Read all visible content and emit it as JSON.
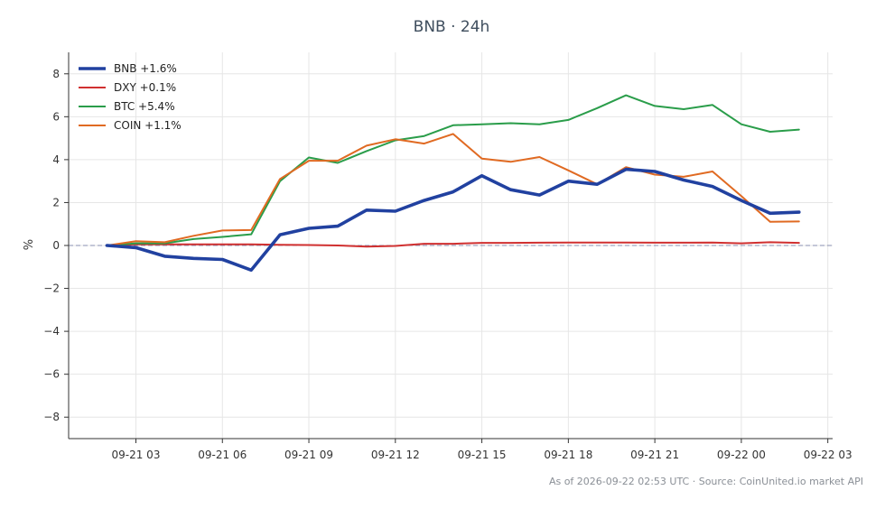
{
  "title": "BNB · 24h",
  "footer": "As of 2026-09-22 02:53 UTC · Source: CoinUnited.io market API",
  "chart_data": {
    "type": "line",
    "title": "BNB · 24h",
    "xlabel": "",
    "ylabel": "%",
    "ylim": [
      -9,
      9
    ],
    "xlim": [
      "2026-09-21 00:40",
      "2026-09-22 03:10"
    ],
    "yticks": [
      -8,
      -6,
      -4,
      -2,
      0,
      2,
      4,
      6,
      8
    ],
    "ytick_labels": [
      "−8",
      "−6",
      "−4",
      "−2",
      "0",
      "2",
      "4",
      "6",
      "8"
    ],
    "xticks": [
      "2026-09-21 03:00",
      "2026-09-21 06:00",
      "2026-09-21 09:00",
      "2026-09-21 12:00",
      "2026-09-21 15:00",
      "2026-09-21 18:00",
      "2026-09-21 21:00",
      "2026-09-22 00:00",
      "2026-09-22 03:00"
    ],
    "xtick_labels": [
      "09-21 03",
      "09-21 06",
      "09-21 09",
      "09-21 12",
      "09-21 15",
      "09-21 18",
      "09-21 21",
      "09-22 00",
      "09-22 03"
    ],
    "grid": true,
    "legend_position": "top-left",
    "zero_line": 0,
    "x": [
      "2026-09-21 02:00",
      "2026-09-21 03:00",
      "2026-09-21 04:00",
      "2026-09-21 05:00",
      "2026-09-21 06:00",
      "2026-09-21 07:00",
      "2026-09-21 08:00",
      "2026-09-21 09:00",
      "2026-09-21 10:00",
      "2026-09-21 11:00",
      "2026-09-21 12:00",
      "2026-09-21 13:00",
      "2026-09-21 14:00",
      "2026-09-21 15:00",
      "2026-09-21 16:00",
      "2026-09-21 17:00",
      "2026-09-21 18:00",
      "2026-09-21 19:00",
      "2026-09-21 20:00",
      "2026-09-21 21:00",
      "2026-09-21 22:00",
      "2026-09-21 23:00",
      "2026-09-22 00:00",
      "2026-09-22 01:00",
      "2026-09-22 02:00"
    ],
    "series": [
      {
        "name": "BNB +1.6%",
        "color": "#2141a0",
        "values": [
          0.0,
          -0.1,
          -0.5,
          -0.6,
          -0.65,
          -1.15,
          0.5,
          0.8,
          0.9,
          1.65,
          1.6,
          2.1,
          2.5,
          3.25,
          2.6,
          2.35,
          3.0,
          2.85,
          3.55,
          3.45,
          3.05,
          2.75,
          2.1,
          1.5,
          1.55
        ]
      },
      {
        "name": "DXY +0.1%",
        "color": "#d03030",
        "values": [
          0.0,
          0.05,
          0.05,
          0.05,
          0.05,
          0.05,
          0.03,
          0.02,
          0.0,
          -0.05,
          -0.02,
          0.08,
          0.08,
          0.12,
          0.12,
          0.13,
          0.14,
          0.14,
          0.14,
          0.13,
          0.13,
          0.14,
          0.1,
          0.15,
          0.12
        ]
      },
      {
        "name": "BTC +5.4%",
        "color": "#2a9d4a",
        "values": [
          0.0,
          0.1,
          0.1,
          0.3,
          0.4,
          0.52,
          3.0,
          4.1,
          3.85,
          4.4,
          4.9,
          5.1,
          5.6,
          5.65,
          5.7,
          5.65,
          5.85,
          6.4,
          7.0,
          6.5,
          6.35,
          6.55,
          5.65,
          5.3,
          5.4
        ]
      },
      {
        "name": "COIN +1.1%",
        "color": "#e06a22",
        "values": [
          0.0,
          0.2,
          0.15,
          0.45,
          0.7,
          0.72,
          3.1,
          3.95,
          3.95,
          4.65,
          4.95,
          4.75,
          5.2,
          4.05,
          3.9,
          4.12,
          3.5,
          2.85,
          3.65,
          3.3,
          3.2,
          3.45,
          2.3,
          1.1,
          1.12
        ]
      }
    ]
  }
}
